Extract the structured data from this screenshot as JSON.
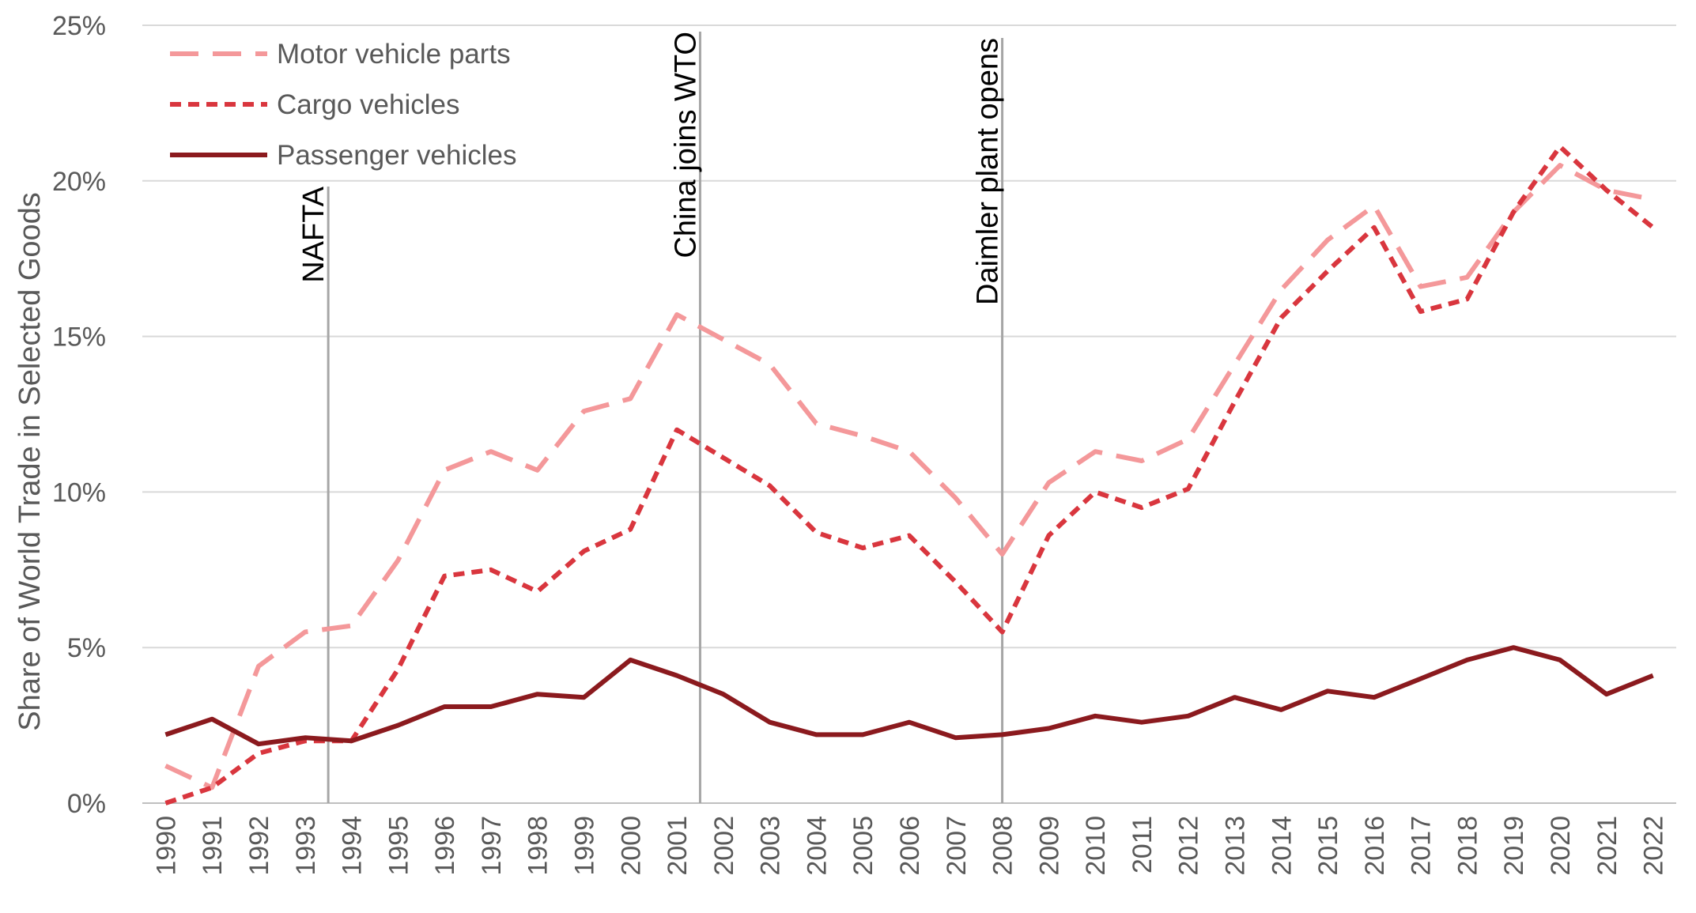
{
  "chart_data": {
    "type": "line",
    "title": "",
    "xlabel": "",
    "ylabel": "Share of World Trade in Selected Goods",
    "ylim": [
      0,
      25
    ],
    "y_ticks": [
      "0%",
      "5%",
      "10%",
      "15%",
      "20%",
      "25%"
    ],
    "y_tick_values": [
      0,
      5,
      10,
      15,
      20,
      25
    ],
    "grid": "horizontal",
    "legend_position": "top-left",
    "categories": [
      "1990",
      "1991",
      "1992",
      "1993",
      "1994",
      "1995",
      "1996",
      "1997",
      "1998",
      "1999",
      "2000",
      "2001",
      "2002",
      "2003",
      "2004",
      "2005",
      "2006",
      "2007",
      "2008",
      "2009",
      "2010",
      "2011",
      "2012",
      "2013",
      "2014",
      "2015",
      "2016",
      "2017",
      "2018",
      "2019",
      "2020",
      "2021",
      "2022"
    ],
    "series": [
      {
        "name": "Motor vehicle parts",
        "color": "#F4989A",
        "dash": "long-dash",
        "values": [
          1.2,
          0.5,
          4.4,
          5.5,
          5.7,
          7.8,
          10.7,
          11.3,
          10.7,
          12.6,
          13.0,
          15.7,
          14.9,
          14.1,
          12.2,
          11.8,
          11.3,
          9.8,
          8.0,
          10.3,
          11.3,
          11.0,
          11.7,
          14.1,
          16.5,
          18.1,
          19.2,
          16.6,
          16.9,
          19.0,
          20.5,
          19.7,
          19.4
        ]
      },
      {
        "name": "Cargo vehicles",
        "color": "#D9363E",
        "dash": "short-dash",
        "values": [
          0.0,
          0.5,
          1.6,
          2.0,
          2.0,
          4.3,
          7.3,
          7.5,
          6.8,
          8.1,
          8.8,
          12.0,
          11.1,
          10.2,
          8.7,
          8.2,
          8.6,
          7.1,
          5.5,
          8.6,
          10.0,
          9.5,
          10.1,
          12.9,
          15.6,
          17.1,
          18.5,
          15.8,
          16.2,
          19.0,
          21.1,
          19.7,
          18.5
        ]
      },
      {
        "name": "Passenger vehicles",
        "color": "#8B1A1E",
        "dash": "solid",
        "values": [
          2.2,
          2.7,
          1.9,
          2.1,
          2.0,
          2.5,
          3.1,
          3.1,
          3.5,
          3.4,
          4.6,
          4.1,
          3.5,
          2.6,
          2.2,
          2.2,
          2.6,
          2.1,
          2.2,
          2.4,
          2.8,
          2.6,
          2.8,
          3.4,
          3.0,
          3.6,
          3.4,
          4.0,
          4.6,
          5.0,
          4.6,
          3.5,
          4.1
        ]
      }
    ],
    "annotations": [
      {
        "label": "NAFTA",
        "x": 1993.5
      },
      {
        "label": "China joins WTO",
        "x": 2001.5
      },
      {
        "label": "Daimler plant opens",
        "x": 2008
      }
    ]
  }
}
